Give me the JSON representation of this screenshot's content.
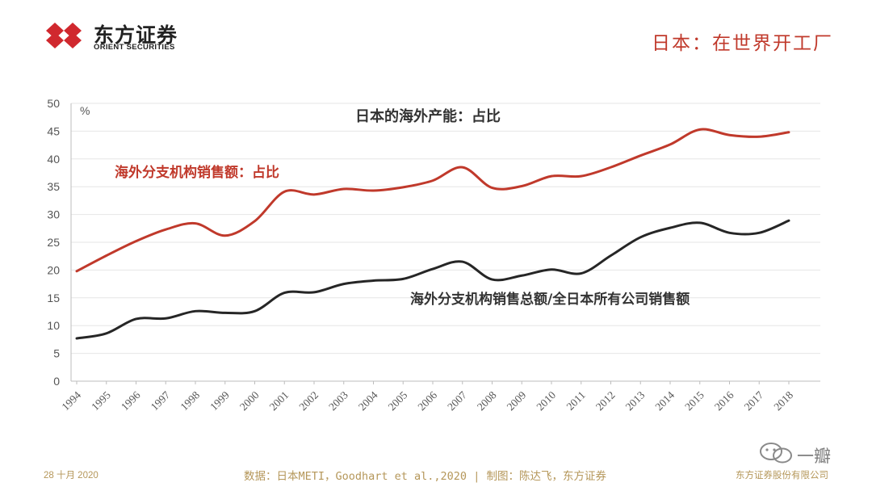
{
  "header": {
    "logo_cn": "东方证券",
    "logo_en": "ORIENT SECURITIES",
    "title": "日本：在世界开工厂"
  },
  "footer": {
    "date": "28 十月 2020",
    "source": "数据：日本METI，Goodhart et al.,2020 | 制图：陈达飞，东方证券",
    "company": "东方证券股份有限公司"
  },
  "watermark": {
    "text": "一瓣"
  },
  "colors": {
    "red": "#c0392b",
    "dark": "#262626",
    "gold": "#b5975a"
  },
  "chart_data": {
    "type": "line",
    "title": "日本的海外产能：占比",
    "unit_label": "%",
    "ylim": [
      0,
      50
    ],
    "y_ticks": [
      0,
      5,
      10,
      15,
      20,
      25,
      30,
      35,
      40,
      45,
      50
    ],
    "grid": true,
    "x": [
      "1994",
      "1995",
      "1996",
      "1997",
      "1998",
      "1999",
      "2000",
      "2001",
      "2002",
      "2003",
      "2004",
      "2005",
      "2006",
      "2007",
      "2008",
      "2009",
      "2010",
      "2011",
      "2012",
      "2013",
      "2014",
      "2015",
      "2016",
      "2017",
      "2018"
    ],
    "series": [
      {
        "name": "海外分支机构销售额：占比",
        "color": "#c0392b",
        "values": [
          19.8,
          22.6,
          25.2,
          27.3,
          28.4,
          26.2,
          28.8,
          34.1,
          33.6,
          34.6,
          34.3,
          34.9,
          36.1,
          38.5,
          34.8,
          35.1,
          36.9,
          36.9,
          38.5,
          40.6,
          42.6,
          45.3,
          44.3,
          44.0,
          44.8
        ]
      },
      {
        "name": "海外分支机构销售总额/全日本所有公司销售额",
        "color": "#262626",
        "values": [
          7.7,
          8.6,
          11.2,
          11.3,
          12.6,
          12.3,
          12.6,
          15.9,
          16.0,
          17.5,
          18.1,
          18.4,
          20.2,
          21.5,
          18.3,
          19.0,
          20.1,
          19.4,
          22.6,
          25.9,
          27.6,
          28.5,
          26.7,
          26.7,
          28.9
        ]
      }
    ]
  }
}
